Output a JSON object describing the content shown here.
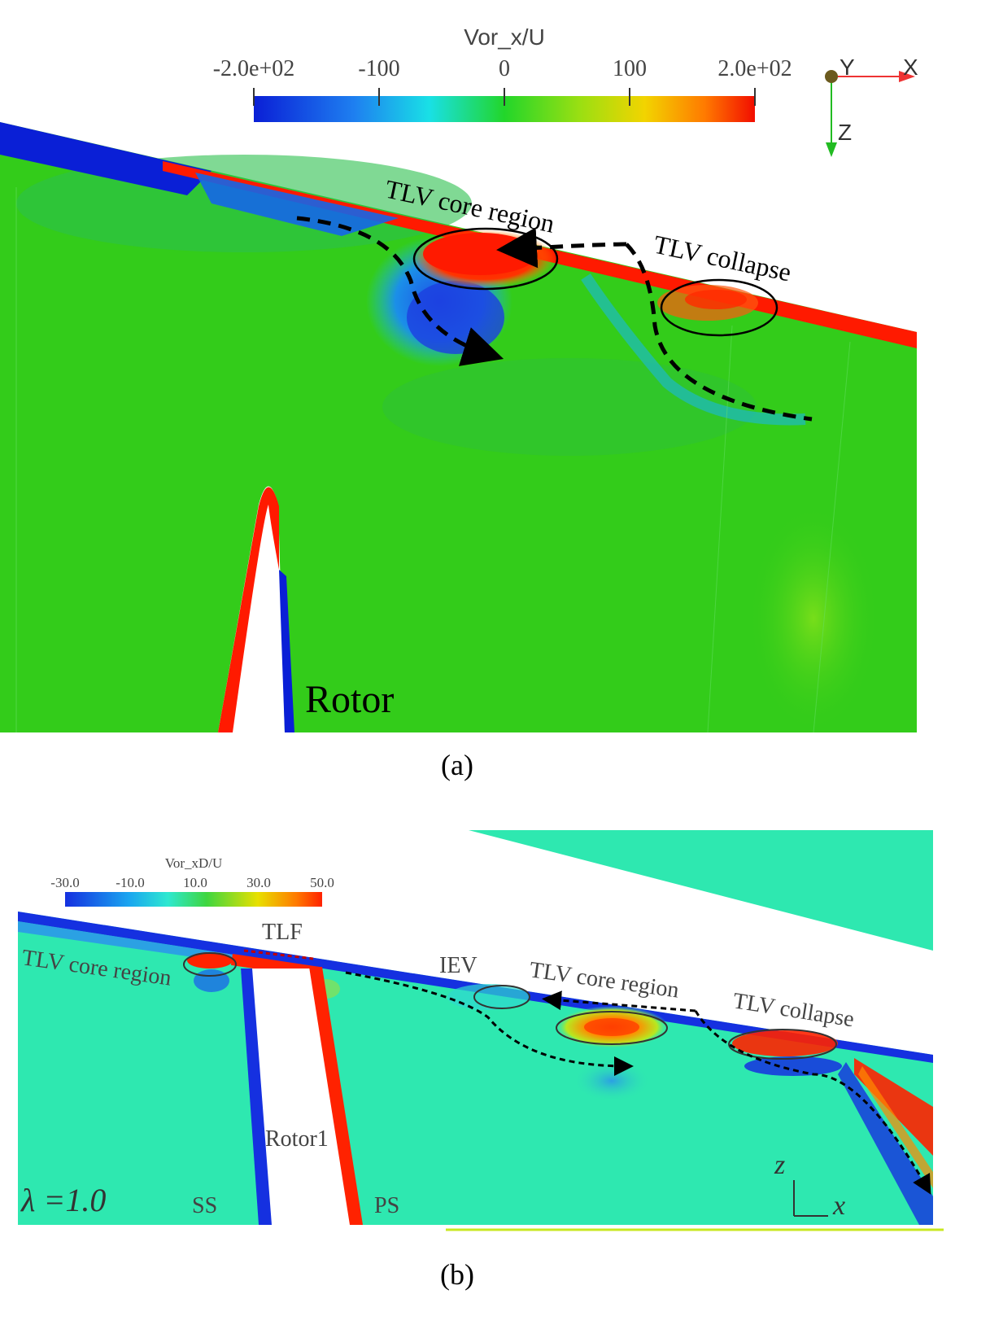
{
  "panel_a": {
    "colorbar": {
      "title": "Vor_x/U",
      "ticks": [
        "-2.0e+02",
        "-100",
        "0",
        "100",
        "2.0e+02"
      ]
    },
    "axes": {
      "y": "Y",
      "x": "X",
      "z": "Z"
    },
    "annotations": {
      "core": "TLV core region",
      "collapse": "TLV collapse",
      "blade": "Rotor"
    },
    "caption": "(a)",
    "colors": {
      "field": "#33cc1a",
      "hot": "#ff1a00",
      "cold": "#0a1fd6"
    }
  },
  "panel_b": {
    "colorbar": {
      "title": "Vor_xD/U",
      "ticks": [
        "-30.0",
        "-10.0",
        "10.0",
        "30.0",
        "50.0"
      ]
    },
    "annotations": {
      "tlf": "TLF",
      "core_left": "TLV core region",
      "iev": "IEV",
      "core_right": "TLV core region",
      "collapse": "TLV collapse",
      "blade": "Rotor1",
      "lambda": "λ =1.0",
      "ss": "SS",
      "ps": "PS",
      "axis_z": "z",
      "axis_x": "x"
    },
    "caption": "(b)",
    "colors": {
      "field": "#2ee8b0",
      "hot": "#ff2200",
      "cold": "#1530e0"
    }
  }
}
